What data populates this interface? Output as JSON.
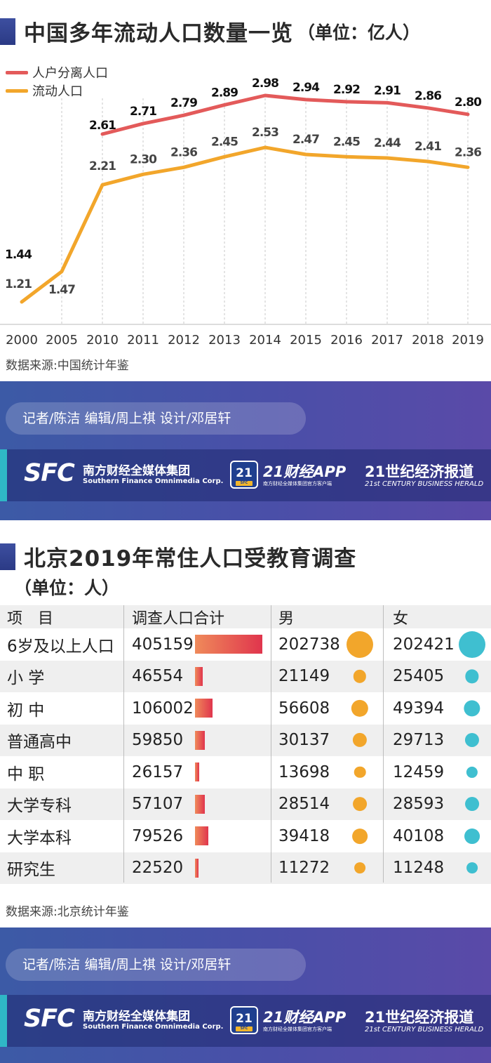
{
  "section1": {
    "title": "中国多年流动人口数量一览",
    "unit": "（单位：亿人）",
    "source": "数据来源:中国统计年鉴",
    "credits": "记者/陈洁  编辑/周上祺  设计/邓居轩"
  },
  "chart_data": {
    "type": "line",
    "x": [
      "2000",
      "2005",
      "2010",
      "2011",
      "2012",
      "2013",
      "2014",
      "2015",
      "2016",
      "2017",
      "2018",
      "2019"
    ],
    "series": [
      {
        "name": "人户分离人口",
        "color": "#e35a5a",
        "values": [
          1.44,
          null,
          2.61,
          2.71,
          2.79,
          2.89,
          2.98,
          2.94,
          2.92,
          2.91,
          2.86,
          2.8
        ],
        "labels": [
          "1.44",
          "",
          "2.61",
          "2.71",
          "2.79",
          "2.89",
          "2.98",
          "2.94",
          "2.92",
          "2.91",
          "2.86",
          "2.80"
        ]
      },
      {
        "name": "流动人口",
        "color": "#f2a62b",
        "values": [
          1.21,
          1.47,
          2.21,
          2.3,
          2.36,
          2.45,
          2.53,
          2.47,
          2.45,
          2.44,
          2.41,
          2.36
        ],
        "labels": [
          "1.21",
          "1.47",
          "2.21",
          "2.30",
          "2.36",
          "2.45",
          "2.53",
          "2.47",
          "2.45",
          "2.44",
          "2.41",
          "2.36"
        ]
      }
    ],
    "ylim": [
      1.0,
      3.1
    ],
    "grid": "vertical dashed",
    "legend": "top-left"
  },
  "section2": {
    "title": "北京2019年常住人口受教育调查",
    "unit": "（单位：人）",
    "source": "数据来源:北京统计年鉴",
    "credits": "记者/陈洁  编辑/周上祺  设计/邓居轩",
    "headers": [
      "项　目",
      "调查人口合计",
      "男",
      "女"
    ],
    "rows": [
      {
        "label": "6岁及以上人口",
        "total": "405159",
        "male": "202738",
        "female": "202421"
      },
      {
        "label": "小  学",
        "total": "46554",
        "male": "21149",
        "female": "25405"
      },
      {
        "label": "初  中",
        "total": "106002",
        "male": "56608",
        "female": "49394"
      },
      {
        "label": "普通高中",
        "total": "59850",
        "male": "30137",
        "female": "29713"
      },
      {
        "label": "中  职",
        "total": "26157",
        "male": "13698",
        "female": "12459"
      },
      {
        "label": "大学专科",
        "total": "57107",
        "male": "28514",
        "female": "28593"
      },
      {
        "label": "大学本科",
        "total": "79526",
        "male": "39418",
        "female": "40108"
      },
      {
        "label": "研究生",
        "total": "22520",
        "male": "11272",
        "female": "11248"
      }
    ]
  },
  "branding": {
    "sfc": "SFC",
    "sfc_cn": "南方财经全媒体集团",
    "sfc_en": "Southern Finance Omnimedia Corp.",
    "app_badge": "21",
    "app_badge_sub": "SFC",
    "app_name": "21财经APP",
    "app_sub": "南方财经全媒体集团官方客户端",
    "herald": "21世纪经济报道",
    "herald_en": "21st CENTURY BUSINESS HERALD"
  },
  "colors": {
    "accent": "#3d4fa0",
    "male_dot": "#f2a62b",
    "female_dot": "#3fbfd0",
    "bar": "#e0354d"
  }
}
